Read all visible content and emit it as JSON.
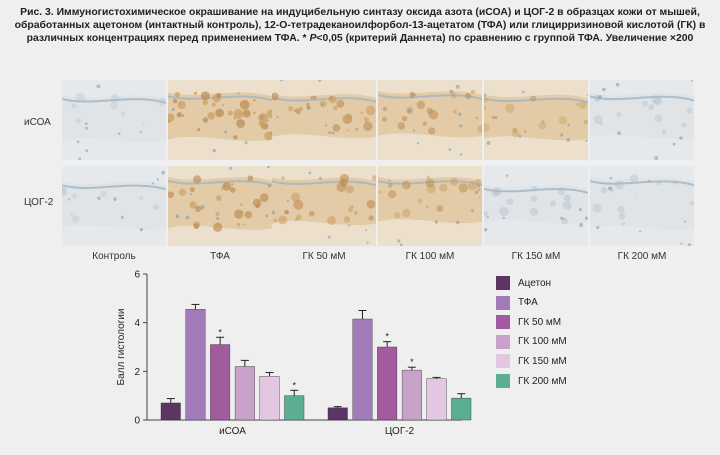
{
  "caption": {
    "prefix": "Рис. 3. Иммуногистохимическое окрашивание на индуцибельную синтазу оксида азота (иСОА) и ЦОГ-2 в образцах кожи от мышей, обработанных ацетоном (интактный контроль), 12-О-тетрадеканоилфорбол-13-ацетатом (ТФА) или глицирризиновой кислотой (ГК) в различных концентрациях перед применением ТФА. *",
    "p": "P",
    "suffix": "<0,05 (критерий Даннета) по сравнению с группой ТФА. Увеличение ×200"
  },
  "micrographs": {
    "rows": [
      "иСОА",
      "ЦОГ-2"
    ],
    "columns": [
      "Контроль",
      "ТФА",
      "ГК 50 мМ",
      "ГК 100 мМ",
      "ГК 150 мМ",
      "ГК 200 мМ"
    ],
    "stain_intensity": [
      [
        0.1,
        0.85,
        0.6,
        0.5,
        0.35,
        0.25
      ],
      [
        0.1,
        0.7,
        0.55,
        0.45,
        0.3,
        0.25
      ]
    ]
  },
  "colors": {
    "Ацетон": "#5b3563",
    "ТФА": "#a27cba",
    "ГК 50 мМ": "#a35ba0",
    "ГК 100 мМ": "#c9a2c9",
    "ГК 150 мМ": "#e2c6e2",
    "ГК 200 мМ": "#5cae92"
  },
  "chart_data": {
    "type": "bar",
    "categories": [
      "иСОА",
      "ЦОГ-2"
    ],
    "ylabel": "Балл гистологии",
    "ylim": [
      0,
      6
    ],
    "yticks": [
      "0",
      "2",
      "4",
      "6"
    ],
    "series": [
      {
        "name": "Ацетон",
        "values": [
          0.7,
          0.5
        ],
        "errors": [
          0.18,
          0.05
        ],
        "sig": [
          "",
          ""
        ]
      },
      {
        "name": "ТФА",
        "values": [
          4.55,
          4.15
        ],
        "errors": [
          0.2,
          0.35
        ],
        "sig": [
          "",
          ""
        ]
      },
      {
        "name": "ГК 50 мМ",
        "values": [
          3.1,
          3.0
        ],
        "errors": [
          0.3,
          0.22
        ],
        "sig": [
          "*",
          "*"
        ]
      },
      {
        "name": "ГК 100 мМ",
        "values": [
          2.2,
          2.05
        ],
        "errors": [
          0.25,
          0.12
        ],
        "sig": [
          "",
          "*"
        ]
      },
      {
        "name": "ГК 150 мМ",
        "values": [
          1.8,
          1.7
        ],
        "errors": [
          0.15,
          0.05
        ],
        "sig": [
          "",
          ""
        ]
      },
      {
        "name": "ГК 200 мМ",
        "values": [
          1.0,
          0.9
        ],
        "errors": [
          0.22,
          0.18
        ],
        "sig": [
          "*",
          ""
        ]
      }
    ],
    "legend": "right"
  }
}
